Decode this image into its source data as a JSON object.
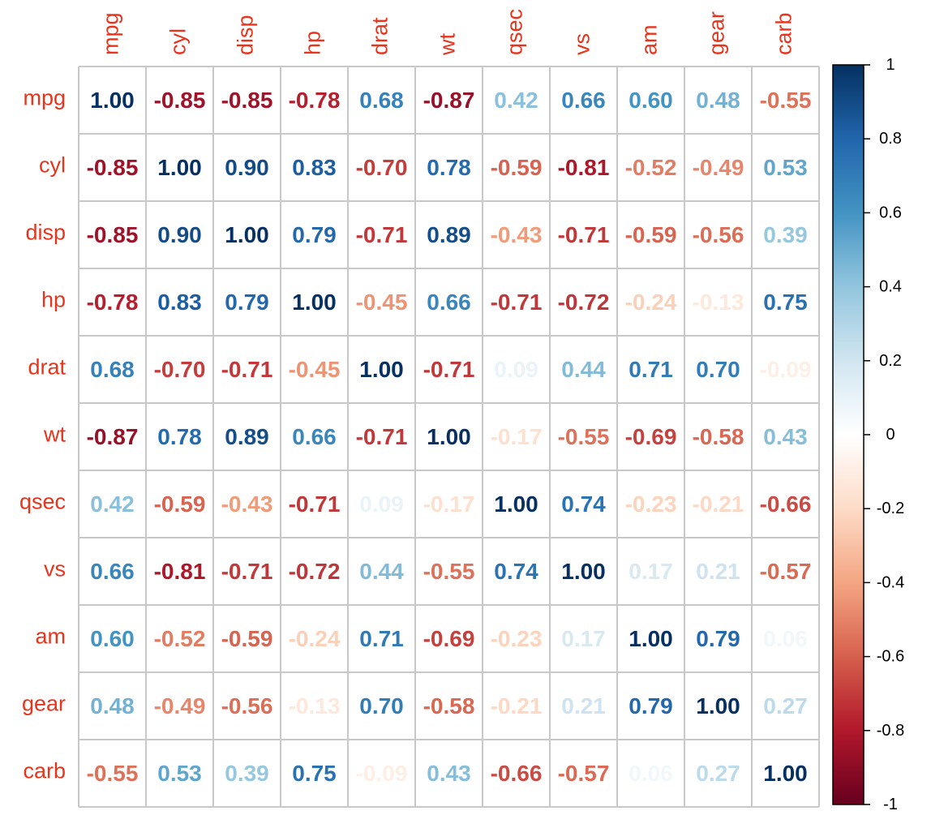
{
  "colors": {
    "label": "#e8341c",
    "grid": "#c8c8c8",
    "colorscale_low": "#67001f",
    "colorscale_mid": "#ffffff",
    "colorscale_high": "#053061"
  },
  "chart_data": {
    "type": "heatmap",
    "title": "",
    "subtitle": "",
    "xlabel": "",
    "ylabel": "",
    "variables": [
      "mpg",
      "cyl",
      "disp",
      "hp",
      "drat",
      "wt",
      "qsec",
      "vs",
      "am",
      "gear",
      "carb"
    ],
    "matrix": [
      [
        "1.00",
        "-0.85",
        "-0.85",
        "-0.78",
        "0.68",
        "-0.87",
        "0.42",
        "0.66",
        "0.60",
        "0.48",
        "-0.55"
      ],
      [
        "-0.85",
        "1.00",
        "0.90",
        "0.83",
        "-0.70",
        "0.78",
        "-0.59",
        "-0.81",
        "-0.52",
        "-0.49",
        "0.53"
      ],
      [
        "-0.85",
        "0.90",
        "1.00",
        "0.79",
        "-0.71",
        "0.89",
        "-0.43",
        "-0.71",
        "-0.59",
        "-0.56",
        "0.39"
      ],
      [
        "-0.78",
        "0.83",
        "0.79",
        "1.00",
        "-0.45",
        "0.66",
        "-0.71",
        "-0.72",
        "-0.24",
        "-0.13",
        "0.75"
      ],
      [
        "0.68",
        "-0.70",
        "-0.71",
        "-0.45",
        "1.00",
        "-0.71",
        "0.09",
        "0.44",
        "0.71",
        "0.70",
        "-0.09"
      ],
      [
        "-0.87",
        "0.78",
        "0.89",
        "0.66",
        "-0.71",
        "1.00",
        "-0.17",
        "-0.55",
        "-0.69",
        "-0.58",
        "0.43"
      ],
      [
        "0.42",
        "-0.59",
        "-0.43",
        "-0.71",
        "0.09",
        "-0.17",
        "1.00",
        "0.74",
        "-0.23",
        "-0.21",
        "-0.66"
      ],
      [
        "0.66",
        "-0.81",
        "-0.71",
        "-0.72",
        "0.44",
        "-0.55",
        "0.74",
        "1.00",
        "0.17",
        "0.21",
        "-0.57"
      ],
      [
        "0.60",
        "-0.52",
        "-0.59",
        "-0.24",
        "0.71",
        "-0.69",
        "-0.23",
        "0.17",
        "1.00",
        "0.79",
        "0.06"
      ],
      [
        "0.48",
        "-0.49",
        "-0.56",
        "-0.13",
        "0.70",
        "-0.58",
        "-0.21",
        "0.21",
        "0.79",
        "1.00",
        "0.27"
      ],
      [
        "-0.55",
        "0.53",
        "0.39",
        "0.75",
        "-0.09",
        "0.43",
        "-0.66",
        "-0.57",
        "0.06",
        "0.27",
        "1.00"
      ]
    ],
    "color_range": [
      -1,
      1
    ],
    "legend": {
      "placement": "right",
      "ticks": [
        "1",
        "0.8",
        "0.6",
        "0.4",
        "0.2",
        "0",
        "-0.2",
        "-0.4",
        "-0.6",
        "-0.8",
        "-1"
      ]
    },
    "grid": true
  }
}
